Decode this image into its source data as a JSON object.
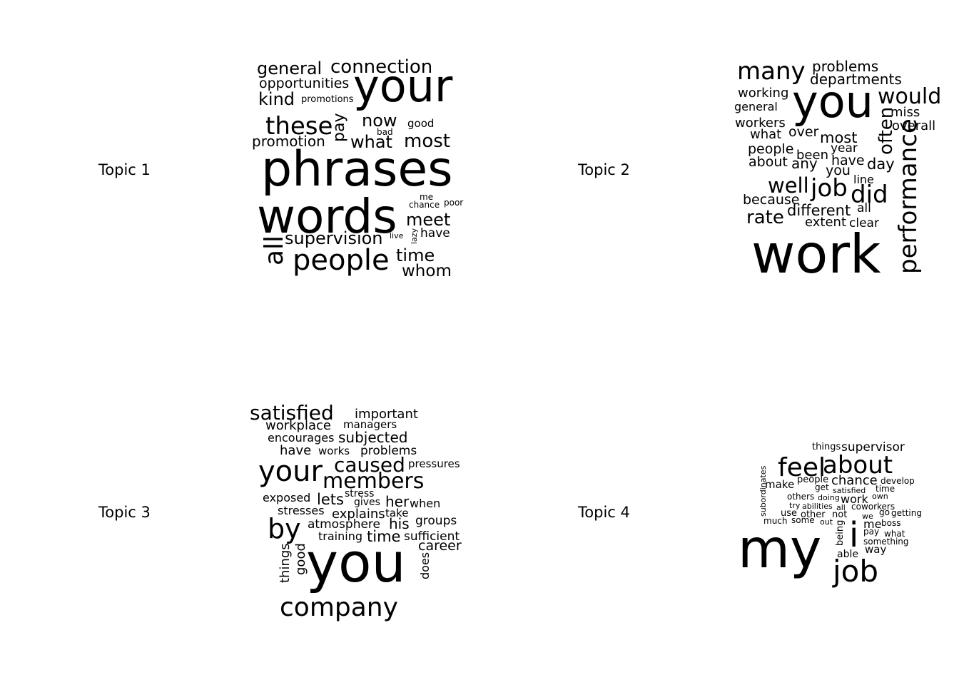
{
  "topics": [
    {
      "label": "Topic 1",
      "words": [
        "general",
        "connection",
        "opportunities",
        "your",
        "kind",
        "promotions",
        "these",
        "pay",
        "now",
        "good",
        "bad",
        "promotion",
        "what",
        "most",
        "phrases",
        "words",
        "me",
        "chance",
        "poor",
        "meet",
        "all",
        "supervision",
        "live",
        "lazy",
        "have",
        "people",
        "time",
        "whom"
      ]
    },
    {
      "label": "Topic 2",
      "words": [
        "many",
        "problems",
        "departments",
        "working",
        "you",
        "would",
        "general",
        "miss",
        "workers",
        "often",
        "overall",
        "what",
        "over",
        "most",
        "year",
        "people",
        "been",
        "have",
        "about",
        "any",
        "day",
        "you",
        "performance",
        "well",
        "job",
        "line",
        "did",
        "because",
        "all",
        "different",
        "rate",
        "extent",
        "clear",
        "work"
      ]
    },
    {
      "label": "Topic 3",
      "words": [
        "satisfied",
        "important",
        "workplace",
        "managers",
        "encourages",
        "subjected",
        "have",
        "works",
        "problems",
        "your",
        "caused",
        "pressures",
        "members",
        "exposed",
        "lets",
        "stress",
        "her",
        "gives",
        "when",
        "stresses",
        "explains",
        "take",
        "by",
        "his",
        "groups",
        "atmosphere",
        "training",
        "time",
        "sufficient",
        "things",
        "good",
        "career",
        "you",
        "does",
        "company"
      ]
    },
    {
      "label": "Topic 4",
      "words": [
        "things",
        "supervisor",
        "feel",
        "about",
        "subordinates",
        "people",
        "chance",
        "develop",
        "make",
        "get",
        "satisfied",
        "time",
        "others",
        "doing",
        "work",
        "own",
        "try",
        "abilities",
        "all",
        "coworkers",
        "use",
        "other",
        "not",
        "we",
        "go",
        "getting",
        "much",
        "some",
        "out",
        "i",
        "me",
        "boss",
        "being",
        "pay",
        "what",
        "my",
        "something",
        "able",
        "way",
        "job"
      ]
    }
  ]
}
